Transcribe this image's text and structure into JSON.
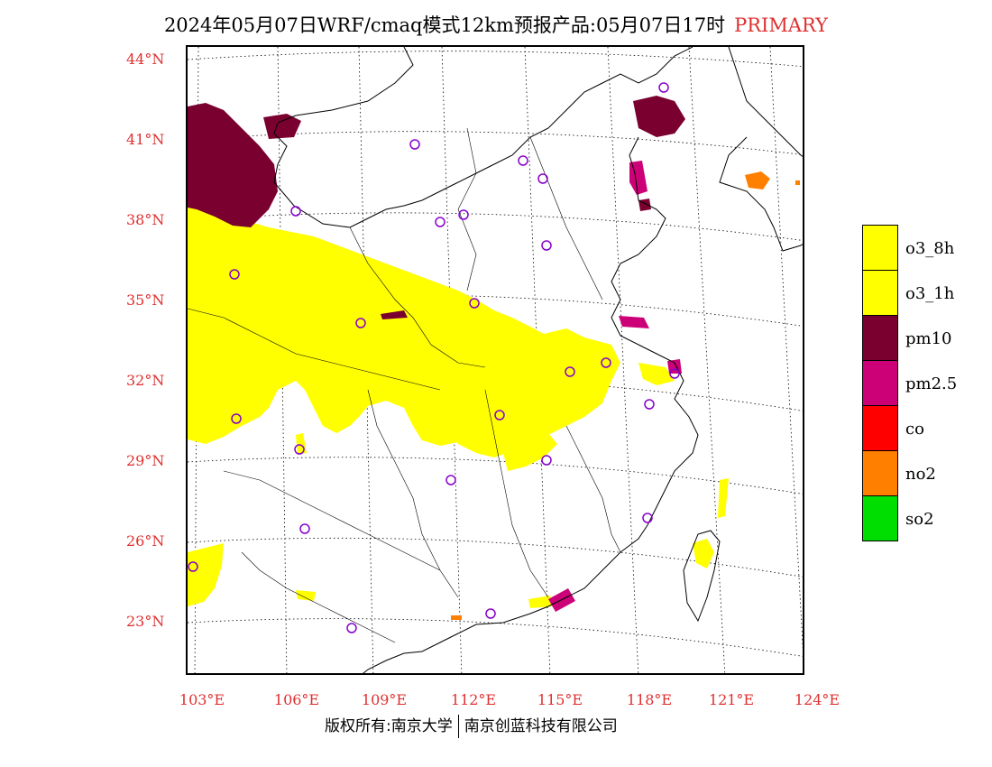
{
  "header": {
    "title": "2024年05月07日WRF/cmaq模式12km预报产品:05月07日17时",
    "primary_label": "PRIMARY"
  },
  "axes": {
    "lat_labels": [
      "44°N",
      "41°N",
      "38°N",
      "35°N",
      "32°N",
      "29°N",
      "26°N",
      "23°N"
    ],
    "lon_labels": [
      "103°E",
      "106°E",
      "109°E",
      "112°E",
      "115°E",
      "118°E",
      "121°E",
      "124°E"
    ]
  },
  "legend": {
    "items": [
      {
        "label": "o3_8h",
        "color": "#ffff00"
      },
      {
        "label": "o3_1h",
        "color": "#ffff00"
      },
      {
        "label": "pm10",
        "color": "#7a0030"
      },
      {
        "label": "pm2.5",
        "color": "#cc0077"
      },
      {
        "label": "co",
        "color": "#ff0000"
      },
      {
        "label": "no2",
        "color": "#ff7f00"
      },
      {
        "label": "so2",
        "color": "#00dd00"
      }
    ]
  },
  "footer": {
    "left": "版权所有:南京大学",
    "right": "南京创蓝科技有限公司"
  },
  "colors": {
    "label_red": "#e03030",
    "o3": "#ffff00",
    "pm10": "#7a0030",
    "pm25": "#cc0077",
    "no2": "#ff7f00",
    "station": "#8800cc"
  }
}
